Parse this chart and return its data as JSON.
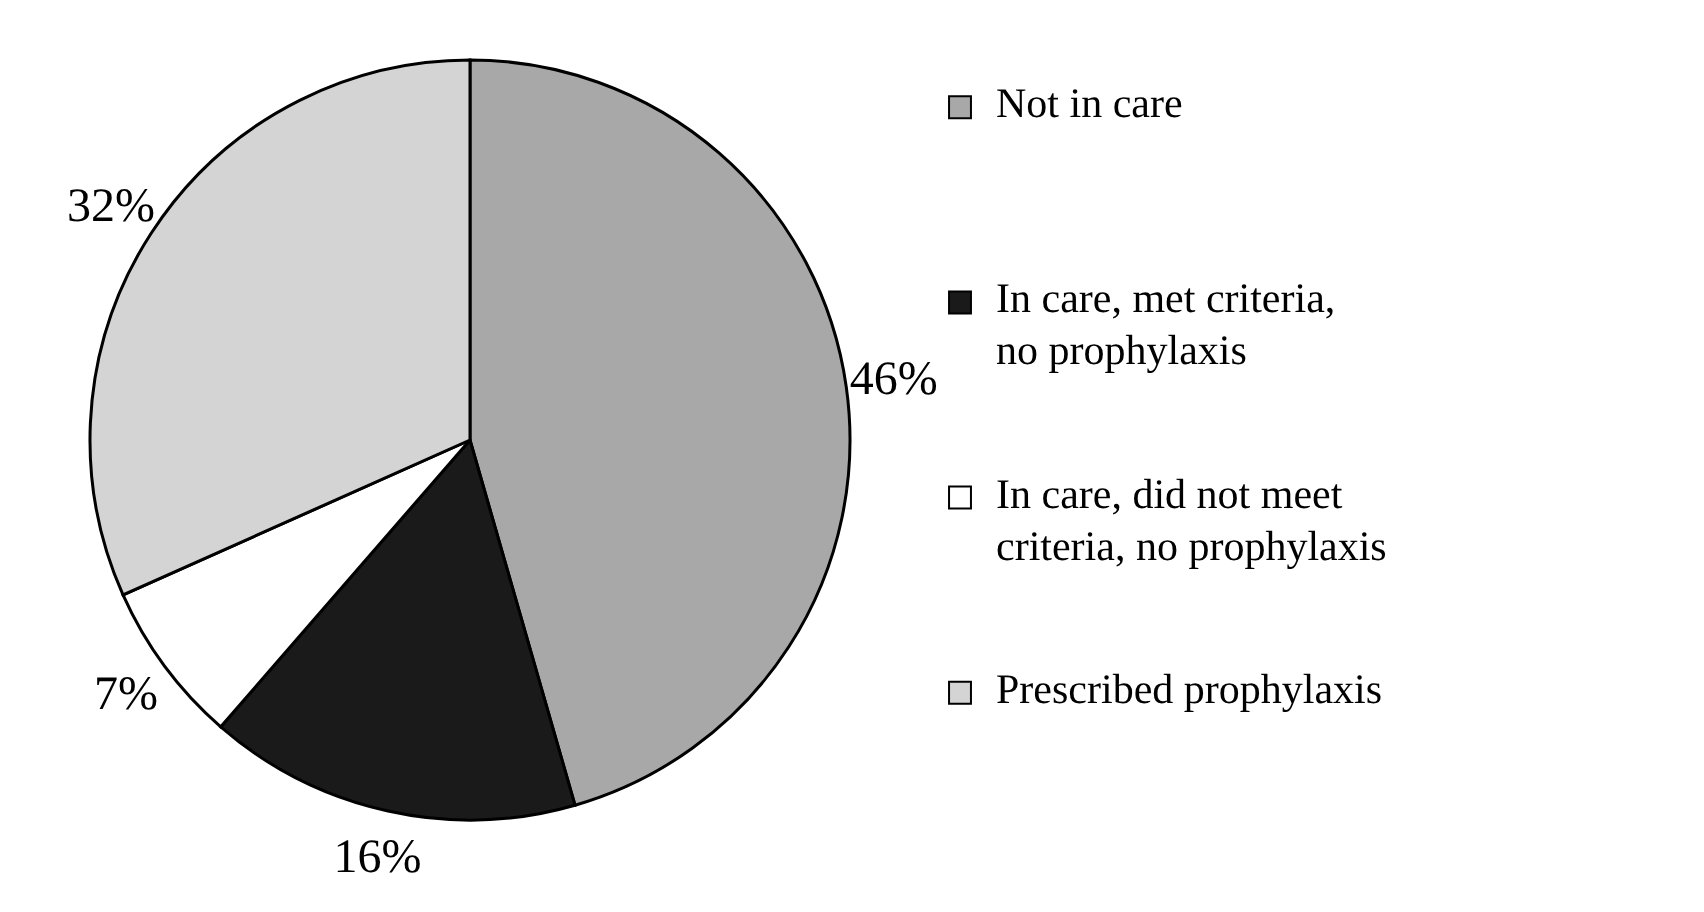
{
  "chart_data": {
    "type": "pie",
    "categories": [
      "Not in care",
      "In care, met criteria,\nno prophylaxis",
      "In care, did not meet\ncriteria, no prophylaxis",
      "Prescribed prophylaxis"
    ],
    "values": [
      46,
      16,
      7,
      32
    ],
    "colors": [
      "#a8a8a8",
      "#1a1a1a",
      "#ffffff",
      "#d4d4d4"
    ],
    "value_labels": [
      "46%",
      "16%",
      "7%",
      "32%"
    ],
    "legend": "right"
  }
}
